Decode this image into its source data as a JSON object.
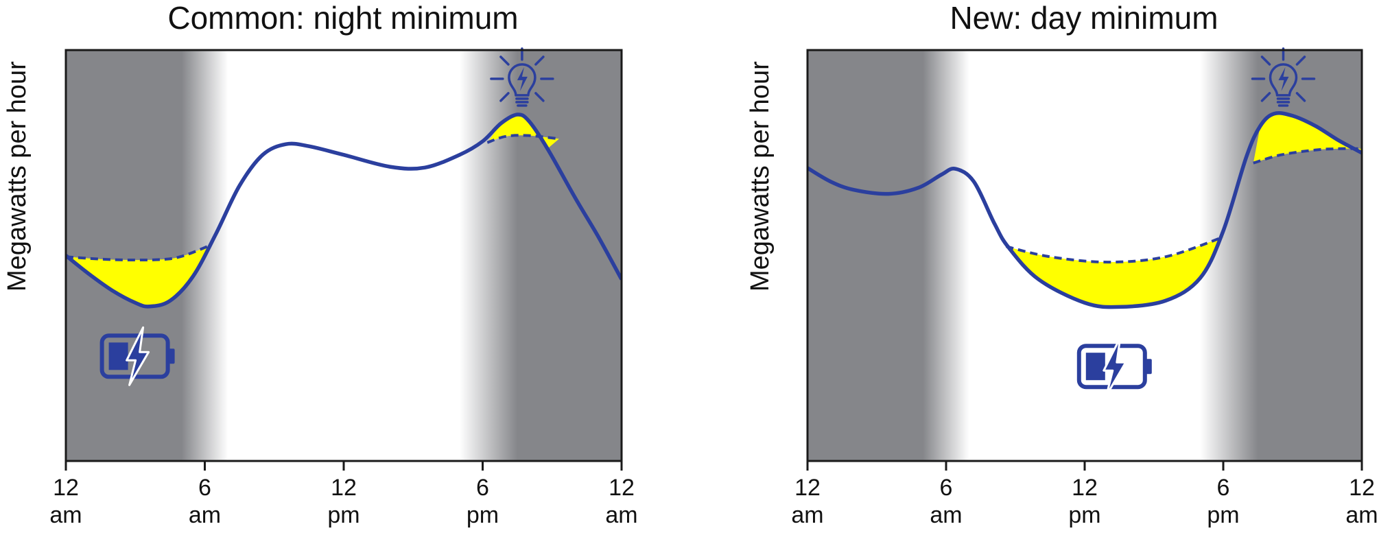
{
  "colors": {
    "line": "#2b3f9e",
    "fill": "#ffff00",
    "dark": "#85868a",
    "light": "#ffffff",
    "frame": "#1a1a1a"
  },
  "icons": [
    "lightbulb-icon",
    "battery-icon"
  ],
  "chart_data": [
    {
      "type": "line",
      "title": "Common: night minimum",
      "xlabel": "",
      "ylabel": "Megawatts per hour",
      "xlim": [
        0,
        24
      ],
      "ylim": [
        0,
        1
      ],
      "grid": false,
      "x_ticks": [
        {
          "value": 0,
          "line1": "12",
          "line2": "am"
        },
        {
          "value": 6,
          "line1": "6",
          "line2": "am"
        },
        {
          "value": 12,
          "line1": "12",
          "line2": "pm"
        },
        {
          "value": 18,
          "line1": "6",
          "line2": "pm"
        },
        {
          "value": 24,
          "line1": "12",
          "line2": "am"
        }
      ],
      "background_shading": [
        {
          "x": 0,
          "shade": "dark"
        },
        {
          "x": 5,
          "shade": "dark"
        },
        {
          "x": 7,
          "shade": "light"
        },
        {
          "x": 17,
          "shade": "light"
        },
        {
          "x": 19.5,
          "shade": "dark"
        },
        {
          "x": 24,
          "shade": "dark"
        }
      ],
      "series": [
        {
          "style": "solid",
          "x": [
            0,
            1,
            2,
            3,
            3.6,
            4.5,
            5.5,
            6.5,
            7.5,
            8.5,
            9.5,
            10.5,
            12,
            14,
            15.5,
            17,
            18,
            18.8,
            19.5,
            20,
            20.8,
            22,
            23,
            24
          ],
          "y": [
            0.5,
            0.455,
            0.415,
            0.385,
            0.376,
            0.39,
            0.45,
            0.555,
            0.67,
            0.745,
            0.771,
            0.766,
            0.745,
            0.716,
            0.714,
            0.745,
            0.778,
            0.822,
            0.843,
            0.827,
            0.76,
            0.64,
            0.545,
            0.442
          ]
        },
        {
          "style": "dashed",
          "x": [
            0,
            2,
            4,
            5,
            6.2
          ],
          "y": [
            0.497,
            0.49,
            0.49,
            0.498,
            0.524
          ]
        },
        {
          "style": "dashed",
          "x": [
            18.2,
            19,
            20,
            21.3
          ],
          "y": [
            0.775,
            0.79,
            0.792,
            0.784
          ]
        }
      ],
      "fills": [
        {
          "x_from": 0,
          "x_to": 6.2,
          "between": [
            1,
            0
          ]
        },
        {
          "x_from": 18.2,
          "x_to": 21.3,
          "between": [
            0,
            2
          ]
        }
      ],
      "icon_positions": [
        {
          "icon": "lightbulb-icon",
          "x": 19.7,
          "y": 0.93
        },
        {
          "icon": "battery-icon",
          "x": 3.1,
          "y": 0.255
        }
      ]
    },
    {
      "type": "line",
      "title": "New: day minimum",
      "xlabel": "",
      "ylabel": "Megawatts per hour",
      "xlim": [
        0,
        24
      ],
      "ylim": [
        0,
        1
      ],
      "grid": false,
      "x_ticks": [
        {
          "value": 0,
          "line1": "12",
          "line2": "am"
        },
        {
          "value": 6,
          "line1": "6",
          "line2": "am"
        },
        {
          "value": 12,
          "line1": "12",
          "line2": "pm"
        },
        {
          "value": 18,
          "line1": "6",
          "line2": "pm"
        },
        {
          "value": 24,
          "line1": "12",
          "line2": "am"
        }
      ],
      "background_shading": [
        {
          "x": 0,
          "shade": "dark"
        },
        {
          "x": 5,
          "shade": "dark"
        },
        {
          "x": 7,
          "shade": "light"
        },
        {
          "x": 17,
          "shade": "light"
        },
        {
          "x": 19.5,
          "shade": "dark"
        },
        {
          "x": 24,
          "shade": "dark"
        }
      ],
      "series": [
        {
          "style": "solid",
          "x": [
            0,
            1,
            2,
            3.5,
            4.8,
            5.8,
            6.4,
            7.2,
            8.1,
            8.7,
            10,
            12,
            13.5,
            15.5,
            17,
            18,
            19,
            19.6,
            20.2,
            21,
            22,
            23,
            24
          ],
          "y": [
            0.713,
            0.68,
            0.66,
            0.65,
            0.665,
            0.697,
            0.711,
            0.68,
            0.577,
            0.52,
            0.442,
            0.385,
            0.375,
            0.39,
            0.445,
            0.56,
            0.74,
            0.815,
            0.845,
            0.84,
            0.815,
            0.78,
            0.75
          ]
        },
        {
          "style": "dashed",
          "x": [
            8.6,
            10.5,
            13,
            15.5,
            18
          ],
          "y": [
            0.522,
            0.497,
            0.484,
            0.497,
            0.545
          ]
        },
        {
          "style": "dashed",
          "x": [
            19.3,
            20.5,
            22,
            23,
            24
          ],
          "y": [
            0.725,
            0.745,
            0.757,
            0.76,
            0.76
          ]
        }
      ],
      "fills": [
        {
          "x_from": 8.6,
          "x_to": 18,
          "between": [
            1,
            0
          ]
        },
        {
          "x_from": 19.3,
          "x_to": 24,
          "between": [
            0,
            2
          ]
        }
      ],
      "icon_positions": [
        {
          "icon": "lightbulb-icon",
          "x": 20.6,
          "y": 0.93
        },
        {
          "icon": "battery-icon",
          "x": 13.3,
          "y": 0.23
        }
      ]
    }
  ]
}
